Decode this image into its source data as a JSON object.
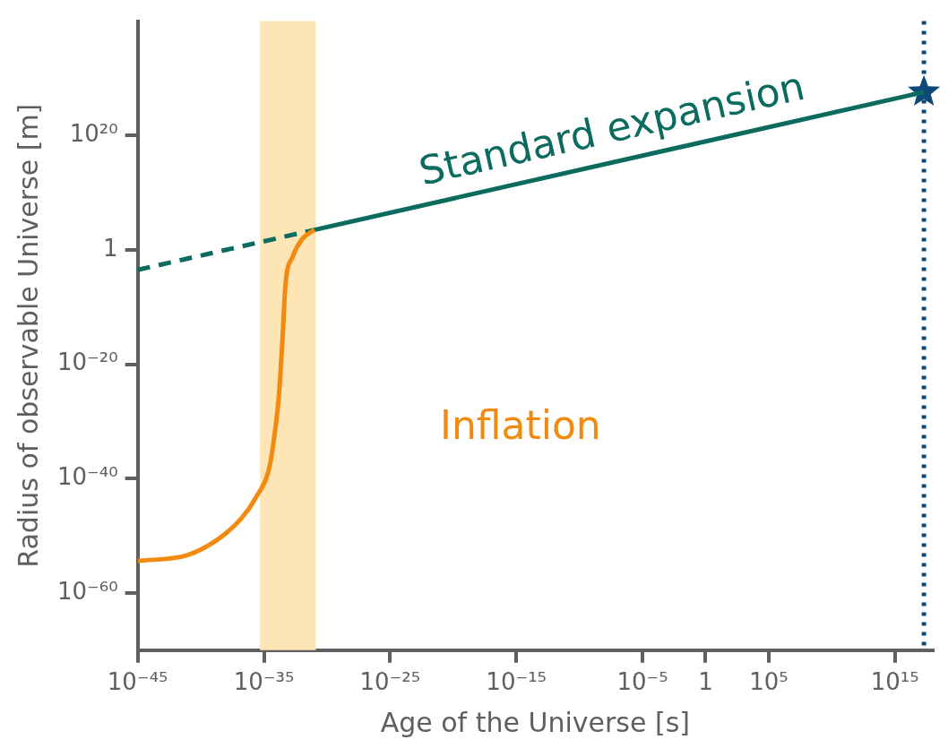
{
  "chart_data": {
    "type": "line",
    "xlabel": "Age of the Universe [s]",
    "ylabel": "Radius of observable Universe [m]",
    "log": "xy",
    "grid": false,
    "legend": false,
    "xlim": [
      1e-45,
      1e+18
    ],
    "xticks": [
      {
        "value": 1e-45,
        "label": "10⁻⁴⁵"
      },
      {
        "value": 1e-35,
        "label": "10⁻³⁵"
      },
      {
        "value": 1e-25,
        "label": "10⁻²⁵"
      },
      {
        "value": 1e-15,
        "label": "10⁻¹⁵"
      },
      {
        "value": 1e-05,
        "label": "10⁻⁵"
      },
      {
        "value": 1,
        "label": "1"
      },
      {
        "value": 100000.0,
        "label": "10⁵"
      },
      {
        "value": 1000000000000000.0,
        "label": "10¹⁵"
      }
    ],
    "ylim": [
      1e-70,
      1e+40
    ],
    "yticks": [
      {
        "value": 1e-60,
        "label": "10⁻⁶⁰"
      },
      {
        "value": 1e-40,
        "label": "10⁻⁴⁰"
      },
      {
        "value": 1e-20,
        "label": "10⁻²⁰"
      },
      {
        "value": 1,
        "label": "1"
      },
      {
        "value": 1e+20,
        "label": "10²⁰"
      }
    ],
    "series": [
      {
        "name": "Inflation",
        "type": "line",
        "color": "#f28a10",
        "marker": "none",
        "line_style": "solid",
        "x": [
          1e-45,
          7.9e-42,
          2e-39,
          1.6e-37,
          2.5e-36,
          2.5e-35,
          6.3e-35,
          1.6e-34,
          3.2e-34,
          5e-34,
          2e-33,
          1e-32,
          1e-31
        ],
        "values": [
          4e-55,
          4e-54,
          2e-51,
          1e-47,
          6.3e-44,
          4e-39,
          7.9e-34,
          7.9e-26,
          4e-15,
          4e-07,
          0.079,
          63,
          3162
        ]
      },
      {
        "type": "line",
        "color": "#0b6b5f",
        "marker": "none",
        "line_style": "dashed",
        "x": [
          1e-45,
          1e-31
        ],
        "values": [
          0.00032,
          3162
        ]
      },
      {
        "name": "Standard expansion",
        "type": "line",
        "color": "#0b6b5f",
        "marker": "none",
        "line_style": "solid",
        "x": [
          1e-31,
          2e+17
        ],
        "values": [
          3162,
          4e+27
        ]
      },
      {
        "type": "scatter",
        "color": "#0d4a7a",
        "marker": "star",
        "x": [
          2e+17
        ],
        "values": [
          4e+27
        ]
      }
    ],
    "bands": [
      {
        "axis": "x",
        "from": 5e-36,
        "to": 1.3e-31,
        "color": "#fde5b5"
      }
    ],
    "ref_lines": [
      {
        "axis": "x",
        "value": 2e+17,
        "color": "#0d4a7a",
        "line_style": "dotted"
      }
    ]
  }
}
